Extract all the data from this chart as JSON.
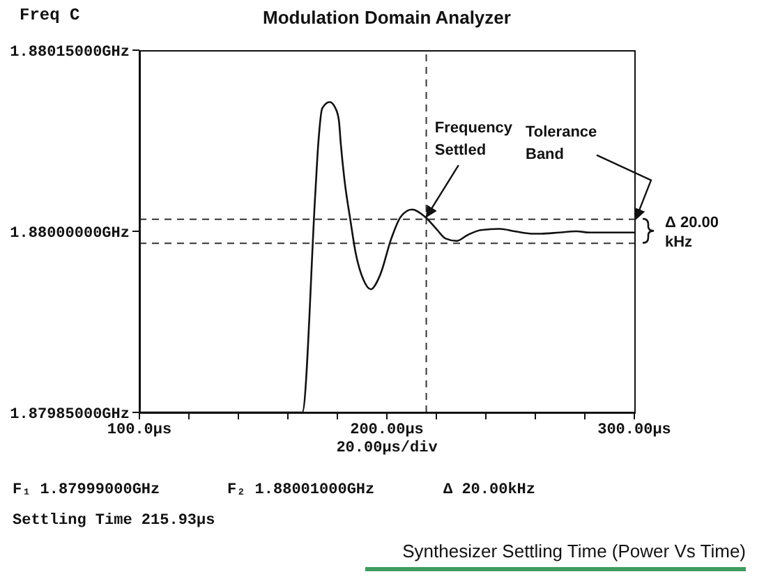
{
  "chart_data": {
    "type": "line",
    "title": "Modulation Domain Analyzer",
    "ylabel": "Freq C",
    "xlabel": "20.00µs/div",
    "x": [
      100,
      165.8,
      171.1,
      172.3,
      173.9,
      176.9,
      179.2,
      180.6,
      181.4,
      182.9,
      185.2,
      187.4,
      190.5,
      193.5,
      197.3,
      201.8,
      205.6,
      210.1,
      215.4,
      220,
      223.7,
      228.2,
      232.7,
      238,
      245.5,
      251.6,
      258.5,
      262.2,
      269.8,
      276.6,
      281.8,
      292.3,
      300
    ],
    "values": [
      1.87985,
      1.87985,
      1.880032,
      1.880073,
      1.880102,
      1.880107,
      1.880102,
      1.880092,
      1.880072,
      1.880042,
      1.88001,
      1.879982,
      1.87996,
      1.879952,
      1.879964,
      1.879994,
      1.880012,
      1.880018,
      1.880012,
      1.880002,
      1.879994,
      1.879992,
      1.879997,
      1.880001,
      1.880002,
      1.88,
      1.879998,
      1.879998,
      1.879999,
      1.88,
      1.879999,
      1.879999,
      1.879999
    ],
    "color": "#111111",
    "marker": "none",
    "xlim": [
      100,
      300
    ],
    "xticks": [
      {
        "value": 100,
        "label": "100.0µs"
      },
      {
        "value": 120,
        "label": null
      },
      {
        "value": 140,
        "label": null
      },
      {
        "value": 160,
        "label": null
      },
      {
        "value": 180,
        "label": null
      },
      {
        "value": 200,
        "label": "200.00µs"
      },
      {
        "value": 220,
        "label": null
      },
      {
        "value": 240,
        "label": null
      },
      {
        "value": 260,
        "label": null
      },
      {
        "value": 280,
        "label": null
      },
      {
        "value": 300,
        "label": "300.00µs"
      }
    ],
    "ylim": [
      1.87985,
      1.88015
    ],
    "yticks": [
      {
        "value": 1.87985,
        "label": "1.87985000GHz"
      },
      {
        "value": 1.88,
        "label": "1.88000000GHz"
      },
      {
        "value": 1.88015,
        "label": "1.88015000GHz"
      }
    ],
    "ref_lines": [
      {
        "axis": "x",
        "value": 215.93,
        "line_style": "dashed"
      },
      {
        "axis": "y",
        "value": 1.88001,
        "line_style": "dashed"
      },
      {
        "axis": "y",
        "value": 1.87999,
        "line_style": "dashed"
      }
    ],
    "annotations": [
      {
        "text": "Frequency Settled",
        "x": 216,
        "y": 1.880012
      },
      {
        "text": "Tolerance Band",
        "x": 300,
        "y": 1.88001
      },
      "Δ 20.00 kHz",
      "F₁ 1.87999000GHz",
      "F₂ 1.88001000GHz",
      "Δ 20.00kHz",
      "Settling Time 215.93µs",
      "Synthesizer Settling Time (Power Vs Time)"
    ]
  }
}
